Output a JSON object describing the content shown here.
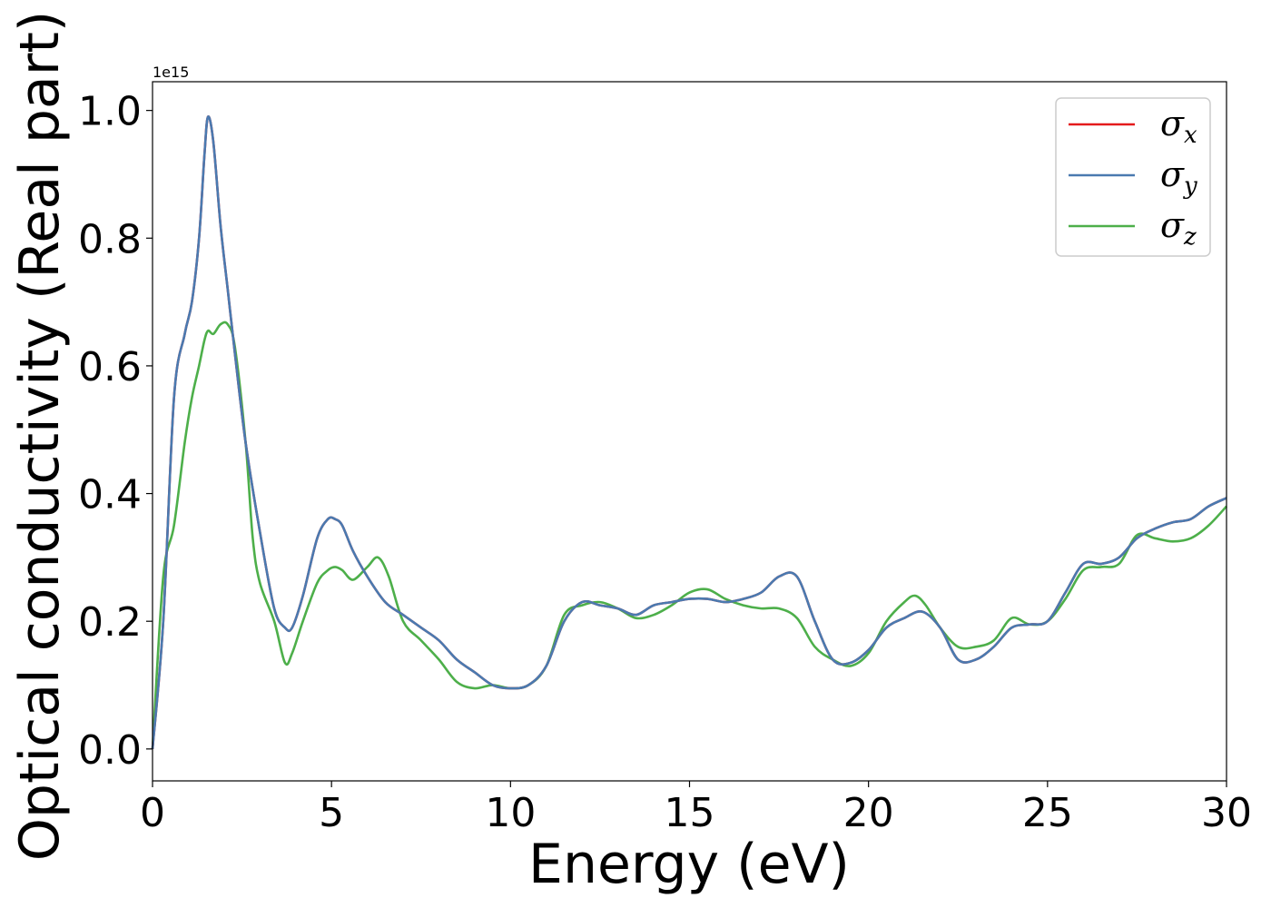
{
  "chart_data": {
    "type": "line",
    "xlabel": "Energy (eV)",
    "ylabel": "Optical conductivity (Real part)",
    "offset_text": "1e15",
    "xlim": [
      0,
      30
    ],
    "ylim": [
      -0.05,
      1.045
    ],
    "y_scale_factor": 1000000000000000.0,
    "x_ticks": [
      0,
      5,
      10,
      15,
      20,
      25,
      30
    ],
    "x_tick_labels": [
      "0",
      "5",
      "10",
      "15",
      "20",
      "25",
      "30"
    ],
    "y_ticks": [
      0.0,
      0.2,
      0.4,
      0.6,
      0.8,
      1.0
    ],
    "y_tick_labels": [
      "0.0",
      "0.2",
      "0.4",
      "0.6",
      "0.8",
      "1.0"
    ],
    "grid": false,
    "legend_placement": "top-right",
    "series": [
      {
        "name": "σx",
        "legend_base": "σ",
        "legend_sub": "x",
        "color": "#e41a1c",
        "x": [
          0,
          0.3,
          0.6,
          0.9,
          1.1,
          1.3,
          1.45,
          1.55,
          1.7,
          1.9,
          2.1,
          2.3,
          2.6,
          3.0,
          3.4,
          3.7,
          3.9,
          4.2,
          4.6,
          4.9,
          5.1,
          5.3,
          5.6,
          6.0,
          6.5,
          7.0,
          7.5,
          8.0,
          8.5,
          9.0,
          9.5,
          10.0,
          10.5,
          11.0,
          11.5,
          12.0,
          12.5,
          13.0,
          13.5,
          14.0,
          14.5,
          15.0,
          15.5,
          16.0,
          16.5,
          17.0,
          17.5,
          18.0,
          18.5,
          19.0,
          19.5,
          20.0,
          20.5,
          21.0,
          21.5,
          22.0,
          22.5,
          23.0,
          23.5,
          24.0,
          24.5,
          25.0,
          25.5,
          26.0,
          26.5,
          27.0,
          27.5,
          28.0,
          28.5,
          29.0,
          29.5,
          30.0
        ],
        "y": [
          0,
          0.2,
          0.55,
          0.65,
          0.7,
          0.8,
          0.93,
          0.99,
          0.95,
          0.82,
          0.72,
          0.62,
          0.48,
          0.34,
          0.22,
          0.19,
          0.19,
          0.24,
          0.33,
          0.36,
          0.36,
          0.35,
          0.31,
          0.27,
          0.23,
          0.21,
          0.19,
          0.17,
          0.14,
          0.12,
          0.1,
          0.095,
          0.1,
          0.13,
          0.2,
          0.23,
          0.225,
          0.22,
          0.21,
          0.225,
          0.23,
          0.235,
          0.235,
          0.23,
          0.235,
          0.245,
          0.27,
          0.27,
          0.2,
          0.14,
          0.135,
          0.155,
          0.19,
          0.205,
          0.215,
          0.19,
          0.14,
          0.14,
          0.16,
          0.19,
          0.195,
          0.2,
          0.245,
          0.29,
          0.29,
          0.3,
          0.33,
          0.345,
          0.355,
          0.36,
          0.38,
          0.393
        ]
      },
      {
        "name": "σy",
        "legend_base": "σ",
        "legend_sub": "y",
        "color": "#4a7ab0",
        "x": [
          0,
          0.3,
          0.6,
          0.9,
          1.1,
          1.3,
          1.45,
          1.55,
          1.7,
          1.9,
          2.1,
          2.3,
          2.6,
          3.0,
          3.4,
          3.7,
          3.9,
          4.2,
          4.6,
          4.9,
          5.1,
          5.3,
          5.6,
          6.0,
          6.5,
          7.0,
          7.5,
          8.0,
          8.5,
          9.0,
          9.5,
          10.0,
          10.5,
          11.0,
          11.5,
          12.0,
          12.5,
          13.0,
          13.5,
          14.0,
          14.5,
          15.0,
          15.5,
          16.0,
          16.5,
          17.0,
          17.5,
          18.0,
          18.5,
          19.0,
          19.5,
          20.0,
          20.5,
          21.0,
          21.5,
          22.0,
          22.5,
          23.0,
          23.5,
          24.0,
          24.5,
          25.0,
          25.5,
          26.0,
          26.5,
          27.0,
          27.5,
          28.0,
          28.5,
          29.0,
          29.5,
          30.0
        ],
        "y": [
          0,
          0.2,
          0.55,
          0.65,
          0.7,
          0.8,
          0.93,
          0.99,
          0.95,
          0.82,
          0.72,
          0.62,
          0.48,
          0.34,
          0.22,
          0.19,
          0.19,
          0.24,
          0.33,
          0.36,
          0.36,
          0.35,
          0.31,
          0.27,
          0.23,
          0.21,
          0.19,
          0.17,
          0.14,
          0.12,
          0.1,
          0.095,
          0.1,
          0.13,
          0.2,
          0.23,
          0.225,
          0.22,
          0.21,
          0.225,
          0.23,
          0.235,
          0.235,
          0.23,
          0.235,
          0.245,
          0.27,
          0.27,
          0.2,
          0.14,
          0.135,
          0.155,
          0.19,
          0.205,
          0.215,
          0.19,
          0.14,
          0.14,
          0.16,
          0.19,
          0.195,
          0.2,
          0.245,
          0.29,
          0.29,
          0.3,
          0.33,
          0.345,
          0.355,
          0.36,
          0.38,
          0.393
        ]
      },
      {
        "name": "σz",
        "legend_base": "σ",
        "legend_sub": "z",
        "color": "#4daf4a",
        "x": [
          0,
          0.3,
          0.6,
          0.9,
          1.1,
          1.3,
          1.45,
          1.55,
          1.7,
          1.9,
          2.1,
          2.3,
          2.6,
          2.8,
          3.0,
          3.4,
          3.7,
          3.9,
          4.2,
          4.6,
          4.9,
          5.1,
          5.3,
          5.6,
          6.0,
          6.3,
          6.6,
          7.0,
          7.5,
          8.0,
          8.5,
          9.0,
          9.5,
          10.0,
          10.5,
          11.0,
          11.5,
          12.0,
          12.5,
          13.0,
          13.5,
          14.0,
          14.5,
          15.0,
          15.5,
          16.0,
          16.5,
          17.0,
          17.5,
          18.0,
          18.5,
          19.0,
          19.5,
          20.0,
          20.5,
          21.0,
          21.3,
          21.6,
          22.0,
          22.5,
          23.0,
          23.5,
          24.0,
          24.5,
          25.0,
          25.5,
          26.0,
          26.5,
          27.0,
          27.5,
          28.0,
          28.5,
          29.0,
          29.5,
          30.0
        ],
        "y": [
          0,
          0.27,
          0.35,
          0.48,
          0.55,
          0.6,
          0.64,
          0.655,
          0.65,
          0.665,
          0.665,
          0.63,
          0.48,
          0.33,
          0.26,
          0.2,
          0.135,
          0.15,
          0.2,
          0.26,
          0.28,
          0.285,
          0.28,
          0.265,
          0.285,
          0.3,
          0.27,
          0.2,
          0.17,
          0.14,
          0.105,
          0.095,
          0.1,
          0.095,
          0.1,
          0.13,
          0.21,
          0.225,
          0.23,
          0.22,
          0.205,
          0.21,
          0.225,
          0.245,
          0.25,
          0.235,
          0.225,
          0.22,
          0.22,
          0.205,
          0.16,
          0.14,
          0.13,
          0.15,
          0.2,
          0.23,
          0.24,
          0.225,
          0.19,
          0.16,
          0.16,
          0.17,
          0.205,
          0.195,
          0.2,
          0.235,
          0.28,
          0.285,
          0.29,
          0.335,
          0.33,
          0.325,
          0.33,
          0.35,
          0.38
        ]
      }
    ]
  }
}
